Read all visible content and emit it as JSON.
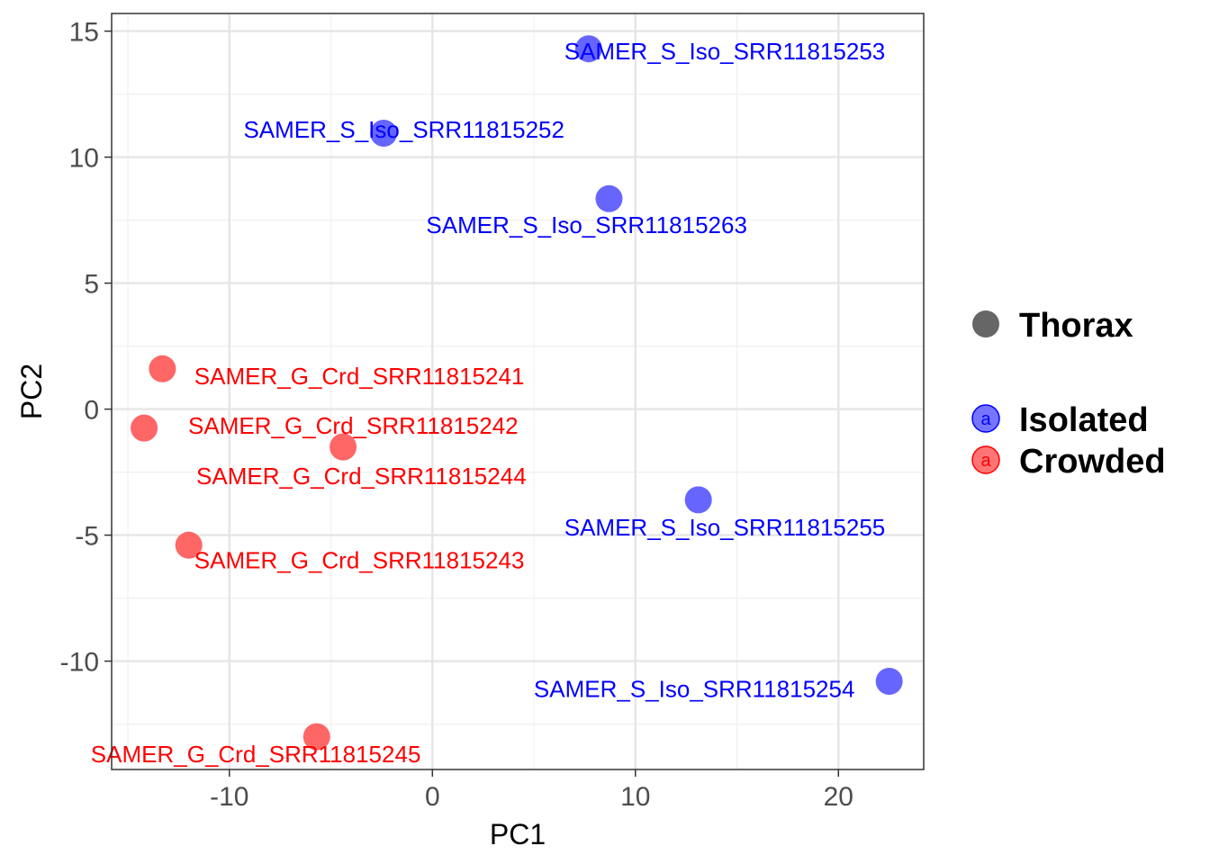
{
  "chart_data": {
    "type": "scatter",
    "title": "",
    "xlabel": "PC1",
    "ylabel": "PC2",
    "xlim": [
      -15.8,
      24.2
    ],
    "ylim": [
      -14.3,
      15.7
    ],
    "x_ticks": [
      -10,
      0,
      10,
      20
    ],
    "x_tick_labels": [
      "-10",
      "0",
      "10",
      "20"
    ],
    "y_ticks": [
      -10,
      -5,
      0,
      5,
      10,
      15
    ],
    "y_tick_labels": [
      "-10",
      "-5",
      "0",
      "5",
      "10",
      "15"
    ],
    "x_minor_ticks": [
      -15,
      -5,
      5,
      15
    ],
    "y_minor_ticks": [
      -12.5,
      -7.5,
      -2.5,
      2.5,
      7.5,
      12.5
    ],
    "grid": true,
    "legend_position": "right",
    "shape_legend": {
      "label": "Thorax",
      "color": "#666666"
    },
    "series": [
      {
        "name": "Isolated",
        "color": "#6666ff",
        "label_color": "#0000ff",
        "points": [
          {
            "label": "SAMER_S_Iso_SRR11815253",
            "x": 7.7,
            "y": 14.3,
            "label_x": 14.4,
            "label_y": 14.2,
            "anchor": "middle"
          },
          {
            "label": "SAMER_S_Iso_SRR11815252",
            "x": -2.4,
            "y": 10.95,
            "label_x": -1.4,
            "label_y": 11.1,
            "anchor": "middle"
          },
          {
            "label": "SAMER_S_Iso_SRR11815263",
            "x": 8.7,
            "y": 8.35,
            "label_x": 7.6,
            "label_y": 7.3,
            "anchor": "middle"
          },
          {
            "label": "SAMER_S_Iso_SRR11815255",
            "x": 13.1,
            "y": -3.6,
            "label_x": 14.4,
            "label_y": -4.7,
            "anchor": "middle"
          },
          {
            "label": "SAMER_S_Iso_SRR11815254",
            "x": 22.5,
            "y": -10.8,
            "label_x": 12.9,
            "label_y": -11.1,
            "anchor": "middle"
          }
        ]
      },
      {
        "name": "Crowded",
        "color": "#ff6666",
        "label_color": "#ff0000",
        "points": [
          {
            "label": "SAMER_G_Crd_SRR11815241",
            "x": -13.3,
            "y": 1.6,
            "label_x": -3.6,
            "label_y": 1.3,
            "anchor": "middle"
          },
          {
            "label": "SAMER_G_Crd_SRR11815242",
            "x": -14.2,
            "y": -0.75,
            "label_x": -3.9,
            "label_y": -0.65,
            "anchor": "middle"
          },
          {
            "label": "SAMER_G_Crd_SRR11815244",
            "x": -4.4,
            "y": -1.5,
            "label_x": -3.5,
            "label_y": -2.65,
            "anchor": "middle"
          },
          {
            "label": "SAMER_G_Crd_SRR11815243",
            "x": -12.0,
            "y": -5.4,
            "label_x": -3.6,
            "label_y": -6.0,
            "anchor": "middle"
          },
          {
            "label": "SAMER_G_Crd_SRR11815245",
            "x": -5.7,
            "y": -13.0,
            "label_x": -8.7,
            "label_y": -13.7,
            "anchor": "middle"
          }
        ]
      }
    ]
  }
}
